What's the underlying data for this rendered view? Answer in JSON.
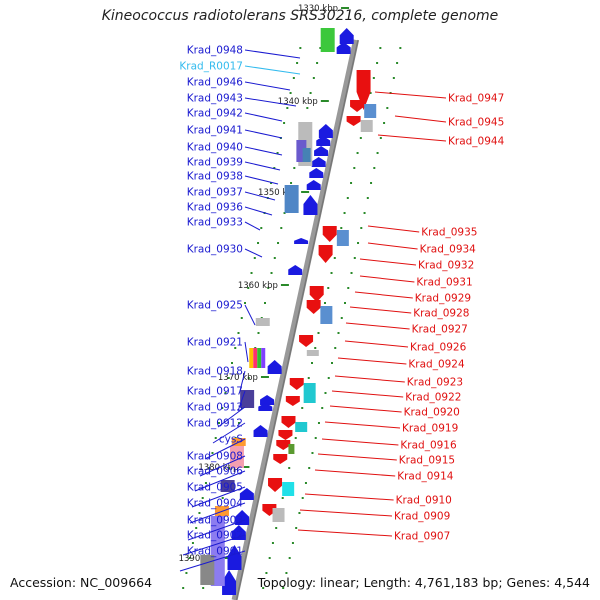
{
  "header": {
    "title": "Kineococcus radiotolerans SRS30216, complete genome"
  },
  "footer": {
    "accession": "Accession: NC_009664",
    "topology": "Topology: linear; Length: 4,761,183 bp; Genes: 4,544"
  },
  "colors": {
    "left_label": "#1a1ad0",
    "rna_label": "#33bbee",
    "right_label": "#e01010",
    "axis": "#999999",
    "tick": "#2a8a2a",
    "forward_gene": "#1a1ae0",
    "reverse_gene": "#e81010"
  },
  "axis": {
    "ticks": [
      "1330 kbp",
      "1340 kbp",
      "1350 kbp",
      "1360 kbp",
      "1370 kbp",
      "1380 kbp",
      "1390 kbp"
    ]
  },
  "left_labels": [
    {
      "name": "Krad_0948",
      "color": "#1a1ad0"
    },
    {
      "name": "Krad_R0017",
      "color": "#33bbee"
    },
    {
      "name": "Krad_0946",
      "color": "#1a1ad0"
    },
    {
      "name": "Krad_0943",
      "color": "#1a1ad0"
    },
    {
      "name": "Krad_0942",
      "color": "#1a1ad0"
    },
    {
      "name": "Krad_0941",
      "color": "#1a1ad0"
    },
    {
      "name": "Krad_0940",
      "color": "#1a1ad0"
    },
    {
      "name": "Krad_0939",
      "color": "#1a1ad0"
    },
    {
      "name": "Krad_0938",
      "color": "#1a1ad0"
    },
    {
      "name": "Krad_0937",
      "color": "#1a1ad0"
    },
    {
      "name": "Krad_0936",
      "color": "#1a1ad0"
    },
    {
      "name": "Krad_0933",
      "color": "#1a1ad0"
    },
    {
      "name": "Krad_0930",
      "color": "#1a1ad0"
    },
    {
      "name": "Krad_0925",
      "color": "#1a1ad0"
    },
    {
      "name": "Krad_0921",
      "color": "#1a1ad0"
    },
    {
      "name": "Krad_0918",
      "color": "#1a1ad0"
    },
    {
      "name": "Krad_0917",
      "color": "#1a1ad0"
    },
    {
      "name": "Krad_0913",
      "color": "#1a1ad0"
    },
    {
      "name": "Krad_0912",
      "color": "#1a1ad0"
    },
    {
      "name": "cysS",
      "color": "#1a1ad0"
    },
    {
      "name": "Krad_0908",
      "color": "#1a1ad0"
    },
    {
      "name": "Krad_0906",
      "color": "#1a1ad0"
    },
    {
      "name": "Krad_0905",
      "color": "#1a1ad0"
    },
    {
      "name": "Krad_0904",
      "color": "#1a1ad0"
    },
    {
      "name": "Krad_0903",
      "color": "#1a1ad0"
    },
    {
      "name": "Krad_0902",
      "color": "#1a1ad0"
    },
    {
      "name": "Krad_0901",
      "color": "#1a1ad0"
    }
  ],
  "right_labels": [
    {
      "name": "Krad_0947",
      "color": "#e01010"
    },
    {
      "name": "Krad_0945",
      "color": "#e01010"
    },
    {
      "name": "Krad_0944",
      "color": "#e01010"
    },
    {
      "name": "Krad_0935",
      "color": "#e01010"
    },
    {
      "name": "Krad_0934",
      "color": "#e01010"
    },
    {
      "name": "Krad_0932",
      "color": "#e01010"
    },
    {
      "name": "Krad_0931",
      "color": "#e01010"
    },
    {
      "name": "Krad_0929",
      "color": "#e01010"
    },
    {
      "name": "Krad_0928",
      "color": "#e01010"
    },
    {
      "name": "Krad_0927",
      "color": "#e01010"
    },
    {
      "name": "Krad_0926",
      "color": "#e01010"
    },
    {
      "name": "Krad_0924",
      "color": "#e01010"
    },
    {
      "name": "Krad_0923",
      "color": "#e01010"
    },
    {
      "name": "Krad_0922",
      "color": "#e01010"
    },
    {
      "name": "Krad_0920",
      "color": "#e01010"
    },
    {
      "name": "Krad_0919",
      "color": "#e01010"
    },
    {
      "name": "Krad_0916",
      "color": "#e01010"
    },
    {
      "name": "Krad_0915",
      "color": "#e01010"
    },
    {
      "name": "Krad_0914",
      "color": "#e01010"
    },
    {
      "name": "Krad_0910",
      "color": "#e01010"
    },
    {
      "name": "Krad_0909",
      "color": "#e01010"
    },
    {
      "name": "Krad_0907",
      "color": "#e01010"
    }
  ]
}
